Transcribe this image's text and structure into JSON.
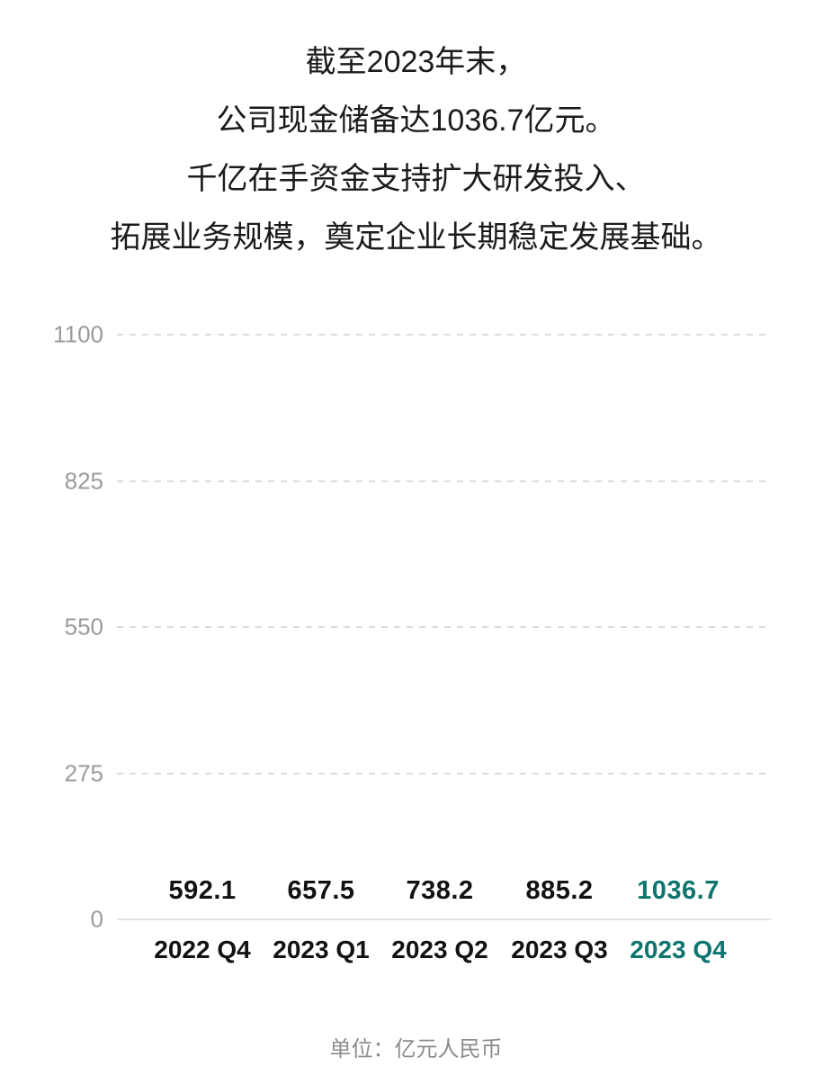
{
  "title": {
    "lines": [
      "截至2023年末，",
      "公司现金储备达1036.7亿元。",
      "千亿在手资金支持扩大研发投入、",
      "拓展业务规模，奠定企业长期稳定发展基础。"
    ]
  },
  "chart_data": {
    "type": "bar",
    "title": "",
    "xlabel": "",
    "ylabel": "",
    "categories": [
      "2022 Q4",
      "2023 Q1",
      "2023 Q2",
      "2023 Q3",
      "2023 Q4"
    ],
    "values": [
      592.1,
      657.5,
      738.2,
      885.2,
      1036.7
    ],
    "ylim": [
      0,
      1100
    ],
    "yticks": [
      1100,
      825,
      550,
      275,
      0
    ],
    "grid": "horizontal-dashed",
    "legend": "none",
    "highlight_index": 4,
    "colors": {
      "bar": "#cbcbcb",
      "highlight": "#00736e",
      "value_label": "#121212",
      "highlight_label": "#0e756f",
      "category_label": "#121212",
      "axis_tick_label": "#9b9b9b",
      "gridline": "#dcdcdc",
      "baseline": "#e3e3e3"
    }
  },
  "footer": {
    "unit_note": "单位：亿元人民币"
  }
}
